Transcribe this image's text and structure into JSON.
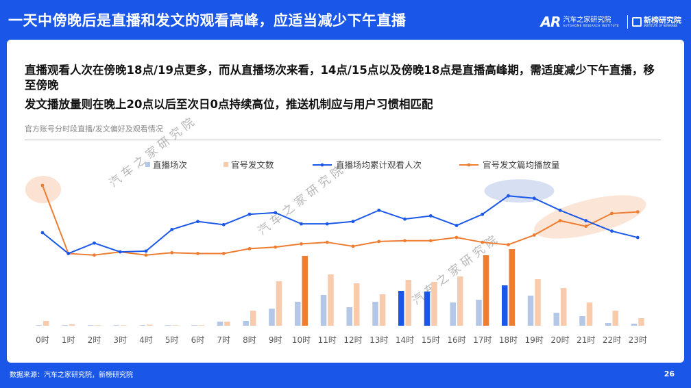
{
  "title": "一天中傍晚后是直播和发文的观看高峰，应适当减少下午直播",
  "logos": {
    "autohome_mark": "AR",
    "autohome_cn": "汽车之家研究院",
    "autohome_en": "AUTOHOME RESEARCH INSTITUTE",
    "xinbang_cn": "新榜研究院",
    "xinbang_en": "INSTITUTE OF NEWRANK"
  },
  "headlines": [
    "直播观看人次在傍晚18点/19点更多，而从直播场次来看，14点/15点以及傍晚18点是直播高峰期，需适度减少下午直播，移至傍晚",
    "发文播放量则在晚上20点以后至次日0点持续高位，推送机制应与用户习惯相匹配"
  ],
  "chart_subtitle": "官方账号分时段直播/发文偏好及观看情况",
  "watermark": "汽 车 之 家 研 究 院",
  "footer_source": "数据来源：汽车之家研究院，新榜研究院",
  "page_number": "26",
  "colors": {
    "live_bar": "#b4c7e7",
    "live_bar_highlight": "#1a57e8",
    "post_bar": "#f8cbad",
    "post_bar_highlight": "#ed7d31",
    "live_line": "#1a57e8",
    "post_line": "#ed7d31"
  },
  "chart_data": {
    "type": "bar+line",
    "title": "官方账号分时段直播/发文偏好及观看情况",
    "categories": [
      "0时",
      "1时",
      "2时",
      "3时",
      "4时",
      "5时",
      "6时",
      "7时",
      "8时",
      "9时",
      "10时",
      "11时",
      "12时",
      "13时",
      "14时",
      "15时",
      "16时",
      "17时",
      "18时",
      "19时",
      "20时",
      "21时",
      "22时",
      "23时"
    ],
    "series": [
      {
        "name": "直播场次",
        "type": "bar",
        "axis": "bar",
        "values": [
          0,
          0,
          0,
          0,
          0,
          0,
          0,
          6,
          7,
          25,
          35,
          45,
          27,
          35,
          51,
          50,
          34,
          38,
          59,
          44,
          19,
          14,
          4,
          3
        ],
        "highlight": [
          14,
          15,
          18
        ]
      },
      {
        "name": "官号发文数",
        "type": "bar",
        "axis": "bar",
        "values": [
          7,
          2,
          0,
          0,
          1,
          0,
          0,
          6,
          22,
          65,
          102,
          75,
          62,
          46,
          67,
          64,
          72,
          103,
          112,
          68,
          55,
          34,
          22,
          11
        ],
        "highlight": [
          10,
          17,
          18
        ]
      },
      {
        "name": "直播场均累计观看人次",
        "type": "line",
        "axis": "line",
        "values": [
          41,
          15,
          28,
          17,
          18,
          45,
          55,
          51,
          64,
          66,
          52,
          52,
          55,
          69,
          58,
          62,
          50,
          64,
          87,
          84,
          69,
          56,
          43,
          35
        ]
      },
      {
        "name": "官号发文篇均播放量",
        "type": "line",
        "axis": "line",
        "values": [
          100,
          15,
          13,
          17,
          13,
          16,
          15,
          15,
          21,
          23,
          27,
          29,
          24,
          30,
          31,
          31,
          35,
          29,
          26,
          38,
          56,
          49,
          65,
          67
        ]
      }
    ],
    "bar_ylim": [
      0,
      120
    ],
    "line_ylim": [
      0,
      100
    ],
    "highlight_ellipses": [
      {
        "around_category": "0时",
        "series": "官号发文篇均播放量"
      },
      {
        "around_category": "18时",
        "series": "直播场均累计观看人次"
      },
      {
        "around_category": "20时-23时",
        "series": "官号发文篇均播放量"
      }
    ]
  }
}
